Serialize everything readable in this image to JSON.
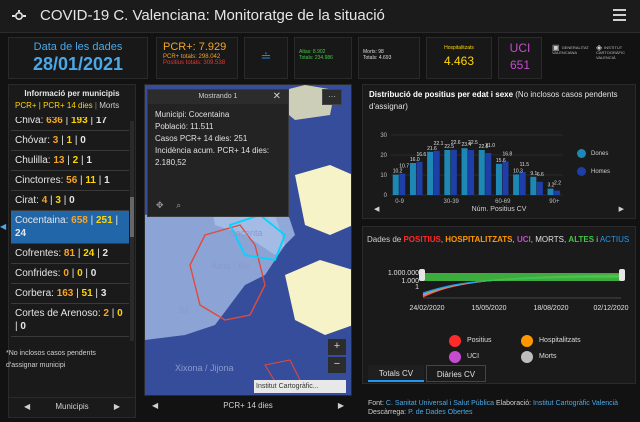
{
  "header": {
    "title": "COVID-19 C. Valenciana: Monitoratge de la situació"
  },
  "indicators": {
    "date": {
      "label": "Data de les dades",
      "value": "28/01/2021"
    },
    "pcr": {
      "main": "PCR+: 7.929",
      "total": "PCR+ totals: 298.042",
      "positius": "Positius totals: 309.538"
    },
    "eq": "≐",
    "altas": {
      "line1": "Altas: 8.902",
      "line2": "Totals: 234.986"
    },
    "morts": {
      "line1": "Morts: 98",
      "line2": "Totals: 4.693"
    },
    "hosp": {
      "label": "Hospitalitzats",
      "value": "4.463"
    },
    "uci": {
      "label": "UCI",
      "value": "651"
    },
    "logos": {
      "gva_text": "GENERALITAT VALENCIANA",
      "ic_text": "INSTITUT CARTOGRÀFIC VALENCIÀ"
    }
  },
  "left_panel": {
    "title": "Informació per municipis",
    "tab_pcr": "PCR+ | PCR+ 14 dies",
    "tab_sep": " | ",
    "tab_morts": "Morts",
    "items": [
      {
        "name": "Chiva:",
        "pcr": "636",
        "pcr14": "193",
        "morts": "17"
      },
      {
        "name": "Chóvar:",
        "pcr": "3",
        "pcr14": "1",
        "morts": "0"
      },
      {
        "name": "Chulilla:",
        "pcr": "13",
        "pcr14": "2",
        "morts": "1"
      },
      {
        "name": "Cinctorres:",
        "pcr": "56",
        "pcr14": "11",
        "morts": "1"
      },
      {
        "name": "Cirat:",
        "pcr": "4",
        "pcr14": "3",
        "morts": "0"
      },
      {
        "name": "Cocentaina:",
        "pcr": "658",
        "pcr14": "251",
        "morts": "24"
      },
      {
        "name": "Cofrentes:",
        "pcr": "81",
        "pcr14": "24",
        "morts": "2"
      },
      {
        "name": "Confrides:",
        "pcr": "0",
        "pcr14": "0",
        "morts": "0"
      },
      {
        "name": "Corbera:",
        "pcr": "163",
        "pcr14": "51",
        "morts": "3"
      },
      {
        "name": "Cortes de Arenoso:",
        "pcr": "2",
        "pcr14": "0",
        "morts": "0"
      }
    ],
    "note": "*No inclosos casos pendents d'assignar municipi",
    "footer": "Municipis",
    "arrow_left": "◀",
    "arrow_right": "▶",
    "edge_arrow": "◀"
  },
  "map": {
    "popup": {
      "header": "Mostrando 1",
      "close": "✕",
      "municipi": "Municipi: Cocentaina",
      "poblacio": "Població: 11.511",
      "casos": "Casos PCR+ 14 dies: 251",
      "incidencia": "Incidència acum. PCR+ 14 dies: 2.180,52",
      "tool1": "✥",
      "tool2": "⌕"
    },
    "more": "···",
    "zoom_in": "+",
    "zoom_out": "−",
    "labels": [
      "Cocenta",
      "Alcoi / Alc",
      "Ibi",
      "Xixona / Jijona"
    ],
    "attribution": "Institut Cartogràfic...",
    "footer": "PCR+ 14 dies",
    "arrow_left": "◀",
    "arrow_right": "▶"
  },
  "bar_chart": {
    "title_bold": "Distribució de positius per edat i sexe",
    "title_rest": " (No inclosos casos pendents d'assignar)",
    "footer": "Núm. Positius CV",
    "legend": [
      "Dones",
      "Homes"
    ],
    "colors": {
      "dones": "#1e88b5",
      "homes": "#1f3fa8",
      "accent": "#2196f3"
    }
  },
  "timeseries": {
    "title_parts": {
      "prefix": "Dades de ",
      "pos": "POSITIUS",
      "hosp": "HOSPITALITZATS",
      "uci": "UCI",
      "morts": "MORTS",
      "altes": "ALTES",
      "i": " i ",
      "actius": "ACTIUS",
      "sep": ", "
    },
    "legend": [
      "Positius",
      "Hospitalitzats",
      "UCI",
      "Morts"
    ],
    "tabs": [
      "Totals CV",
      "Diàries CV"
    ]
  },
  "source": {
    "font_label": "Font: ",
    "font_val": "C. Sanitat Universal i Salut Pública",
    "elab_label": " Elaboració: ",
    "elab_val": "Institut Cartogràfic Valencià",
    "desc_label": " Descàrrega: ",
    "desc_val": "P. de Dades Obertes"
  },
  "chart_data": [
    {
      "type": "bar",
      "title": "Distribució de positius per edat i sexe",
      "xlabel": "Núm. Positius CV",
      "ylim": [
        0,
        30
      ],
      "y_ticks": [
        "0",
        "10",
        "20",
        "30"
      ],
      "y_tick_values": [
        0,
        10,
        20,
        30
      ],
      "x_ticks": [
        "0-9",
        "30-39",
        "60-69",
        "90+"
      ],
      "categories": [
        "0-9",
        "10-19",
        "20-29",
        "30-39",
        "40-49",
        "50-59",
        "60-69",
        "70-79",
        "80-89",
        "90+"
      ],
      "series": [
        {
          "name": "Dones",
          "values": [
            10.2,
            16.0,
            21.6,
            22.5,
            23.4,
            22.5,
            15.6,
            10.3,
            9.1,
            3.2
          ]
        },
        {
          "name": "Homes",
          "values": [
            10.7,
            16.6,
            22.1,
            22.6,
            22.5,
            21.0,
            16.8,
            11.5,
            6.6,
            2.2
          ]
        }
      ],
      "data_labels": [
        "10.2",
        "10.7",
        "16.0",
        "16.6",
        "21.6",
        "22.1",
        "22.5",
        "22.6",
        "23.4",
        "22.5",
        "22.5",
        "21.0",
        "15.6",
        "16.8",
        "10.3",
        "11.5",
        "9.1",
        "6.6",
        "3.2",
        "2.2"
      ],
      "legend": "right"
    },
    {
      "type": "line",
      "title": "Dades de POSITIUS, HOSPITALITZATS, UCI, MORTS, ALTES i ACTIUS",
      "y_ticks": [
        "1.000.000",
        "1.000",
        "1"
      ],
      "y_scale": "log",
      "x_ticks": [
        "24/02/2020",
        "15/05/2020",
        "18/08/2020",
        "02/12/2020"
      ],
      "series_colors": [
        "#ff2a2a",
        "#ff9800",
        "#c54bd0",
        "#bdbdbd",
        "#43c743",
        "#2196f3"
      ]
    }
  ]
}
